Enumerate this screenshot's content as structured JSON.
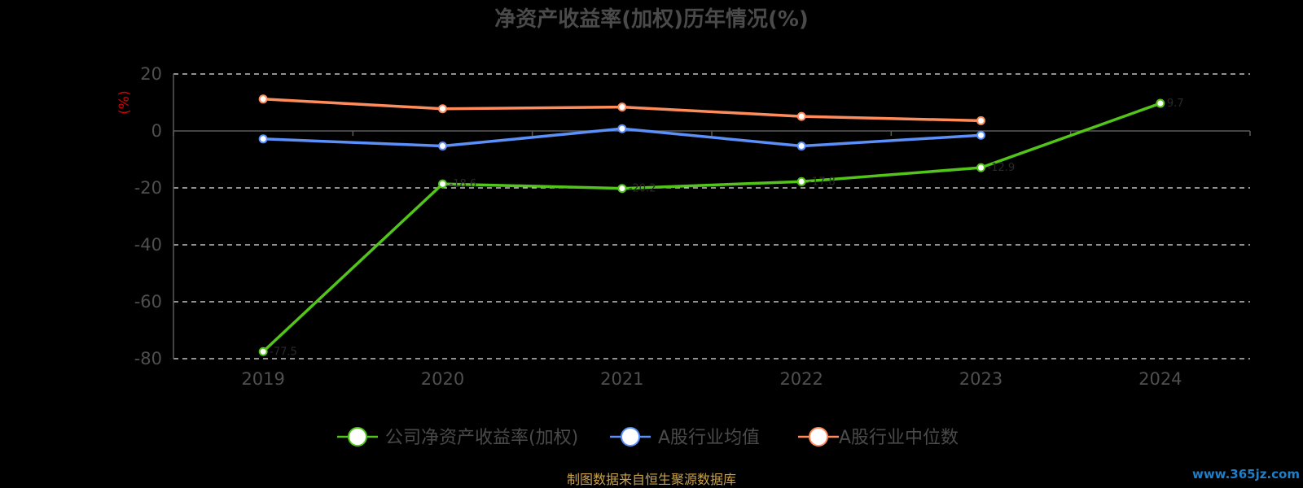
{
  "chart_data": {
    "type": "line",
    "title": "净资产收益率(加权)历年情况(%)",
    "ylabel": "(%)",
    "xlabel": "",
    "categories": [
      "2019",
      "2020",
      "2021",
      "2022",
      "2023",
      "2024"
    ],
    "ylim": [
      -80,
      20
    ],
    "yticks": [
      20,
      0,
      -20,
      -40,
      -60,
      -80
    ],
    "grid": true,
    "legend_position": "bottom",
    "series": [
      {
        "name": "公司净资产收益率(加权)",
        "color": "#52c41a",
        "values": [
          -77.5,
          -18.6,
          -20.2,
          -17.8,
          -12.9,
          9.7
        ]
      },
      {
        "name": "A股行业均值",
        "color": "#5b8ff9",
        "values": [
          -2.8,
          -5.3,
          0.8,
          -5.3,
          -1.5,
          null
        ]
      },
      {
        "name": "A股行业中位数",
        "color": "#ff8c5a",
        "values": [
          11.2,
          7.8,
          8.4,
          5.1,
          3.6,
          null
        ]
      }
    ]
  },
  "footer": {
    "source": "制图数据来自恒生聚源数据库",
    "watermark": "www.365jz.com"
  }
}
